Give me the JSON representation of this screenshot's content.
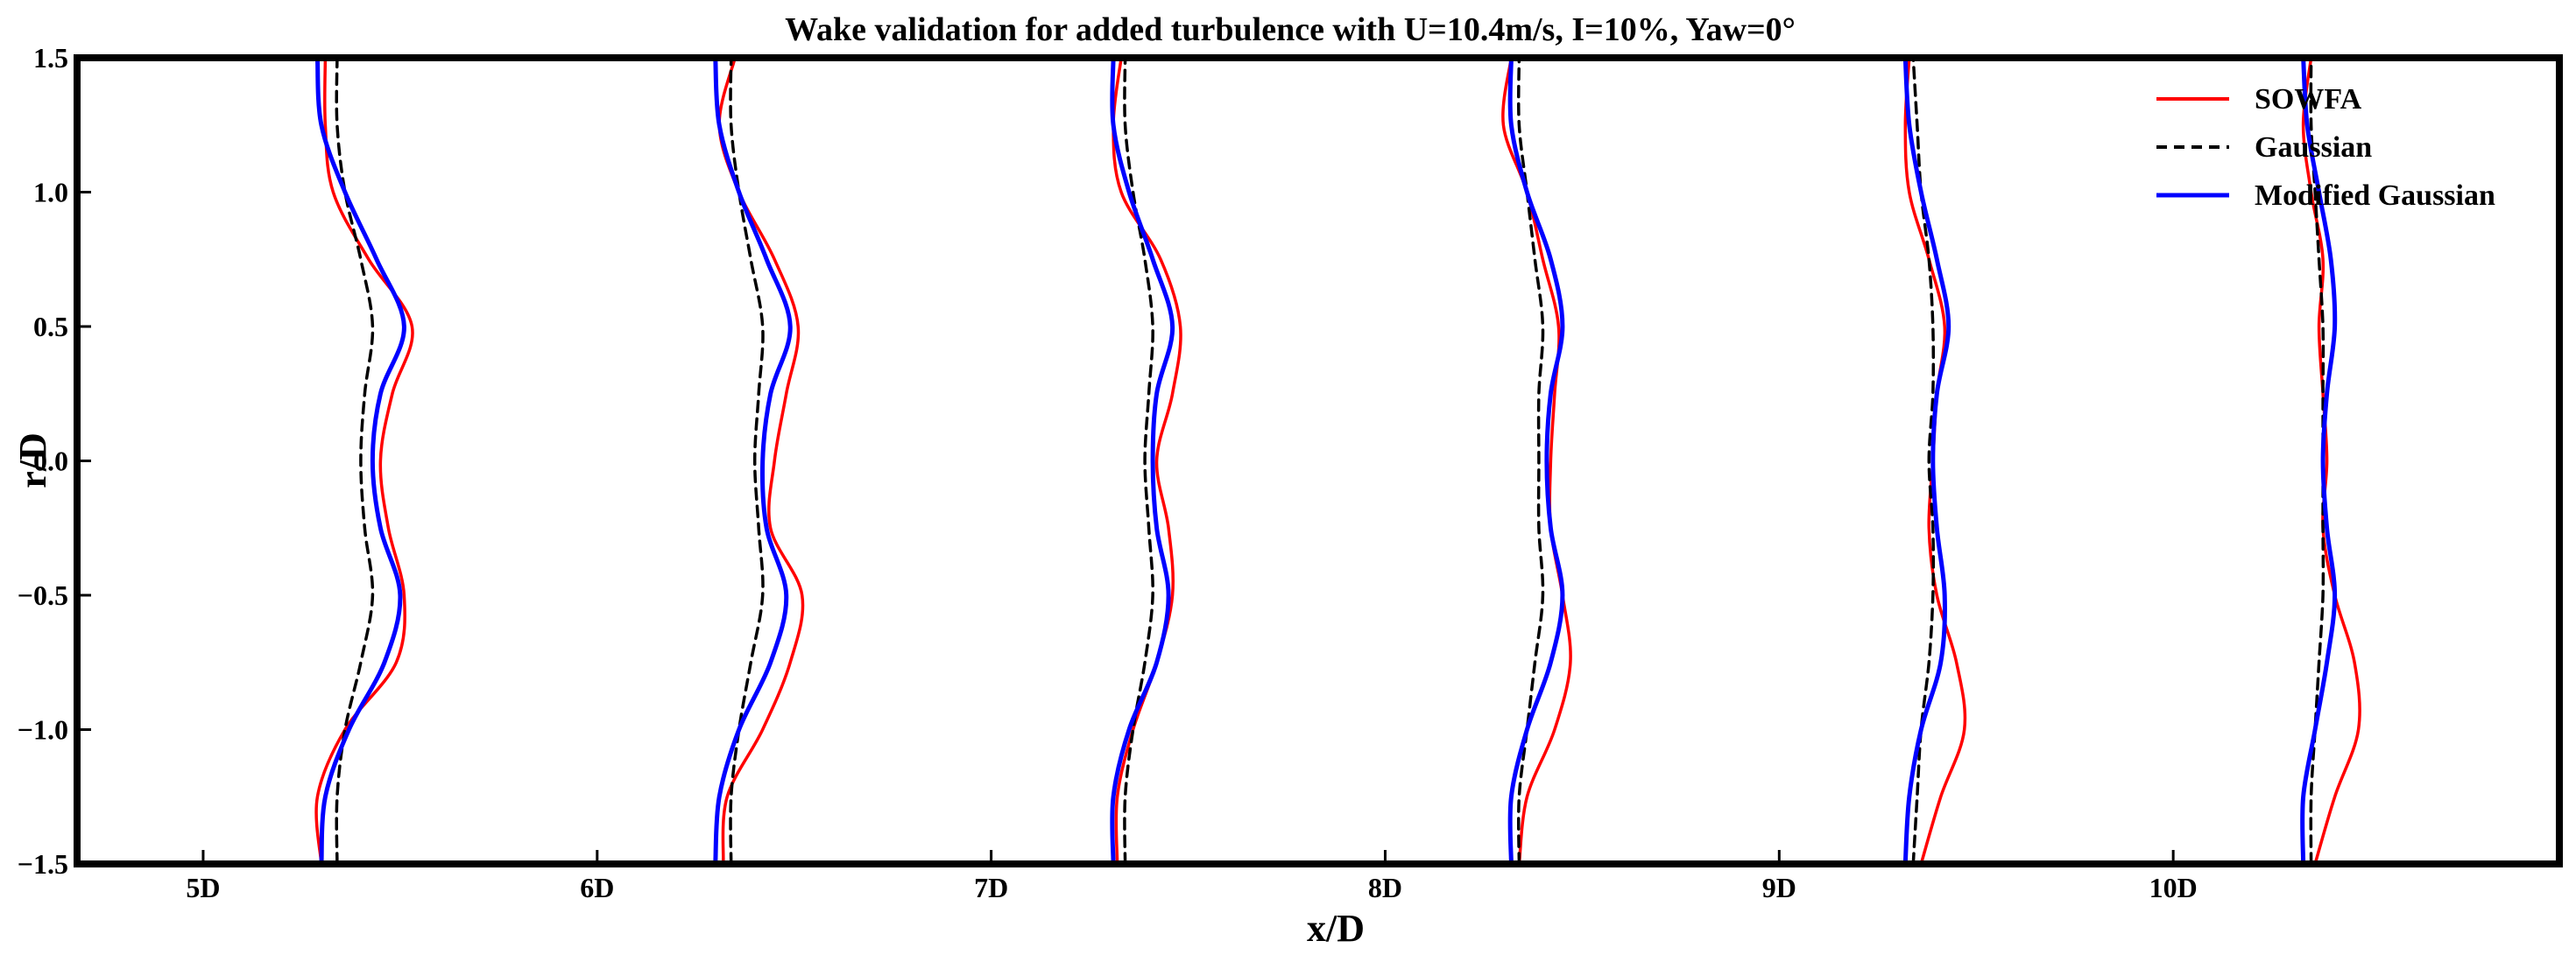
{
  "chart_data": {
    "type": "line",
    "title": "Wake validation for added turbulence with U=10.4m/s, I=10%, Yaw=0°",
    "xlabel": "x/D",
    "ylabel": "r/D",
    "xlim": [
      4.68,
      10.98
    ],
    "ylim": [
      -1.5,
      1.5
    ],
    "x_ticks": [
      5,
      6,
      7,
      8,
      9,
      10
    ],
    "x_tick_labels": [
      "5D",
      "6D",
      "7D",
      "8D",
      "9D",
      "10D"
    ],
    "y_ticks": [
      -1.5,
      -1.0,
      -0.5,
      0.0,
      0.5,
      1.0,
      1.5
    ],
    "y_tick_labels": [
      "−1.5",
      "−1.0",
      "−0.5",
      "0.0",
      "0.5",
      "1.0",
      "1.5"
    ],
    "legend_position": "top-right",
    "grid": false,
    "profile_r": [
      -1.5,
      -1.25,
      -1.0,
      -0.75,
      -0.5,
      -0.25,
      0.0,
      0.25,
      0.5,
      0.75,
      1.0,
      1.25,
      1.5
    ],
    "series": [
      {
        "name": "SOWFA",
        "color": "#ff0000",
        "dash": "solid",
        "profiles": [
          {
            "station": "5D",
            "x": [
              5.3,
              5.29,
              5.36,
              5.49,
              5.51,
              5.47,
              5.45,
              5.48,
              5.53,
              5.42,
              5.33,
              5.31,
              5.31
            ]
          },
          {
            "station": "6D",
            "x": [
              6.32,
              6.33,
              6.42,
              6.49,
              6.52,
              6.44,
              6.45,
              6.48,
              6.51,
              6.45,
              6.36,
              6.31,
              6.35
            ]
          },
          {
            "station": "7D",
            "x": [
              7.32,
              7.32,
              7.36,
              7.42,
              7.46,
              7.45,
              7.42,
              7.46,
              7.48,
              7.43,
              7.33,
              7.31,
              7.33
            ]
          },
          {
            "station": "8D",
            "x": [
              8.34,
              8.36,
              8.43,
              8.47,
              8.45,
              8.42,
              8.42,
              8.43,
              8.44,
              8.4,
              8.36,
              8.3,
              8.32
            ]
          },
          {
            "station": "9D",
            "x": [
              9.36,
              9.41,
              9.47,
              9.45,
              9.4,
              9.38,
              9.39,
              9.4,
              9.42,
              9.38,
              9.33,
              9.32,
              9.33
            ]
          },
          {
            "station": "10D",
            "x": [
              10.36,
              10.41,
              10.47,
              10.46,
              10.41,
              10.38,
              10.39,
              10.38,
              10.37,
              10.38,
              10.35,
              10.33,
              10.35
            ]
          }
        ]
      },
      {
        "name": "Gaussian",
        "color": "#000000",
        "dash": "dashed",
        "profiles": [
          {
            "station": "5D",
            "x": [
              5.34,
              5.34,
              5.36,
              5.4,
              5.43,
              5.41,
              5.4,
              5.41,
              5.43,
              5.4,
              5.36,
              5.34,
              5.34
            ]
          },
          {
            "station": "6D",
            "x": [
              6.34,
              6.34,
              6.36,
              6.39,
              6.42,
              6.41,
              6.4,
              6.41,
              6.42,
              6.39,
              6.36,
              6.34,
              6.34
            ]
          },
          {
            "station": "7D",
            "x": [
              7.34,
              7.34,
              7.36,
              7.39,
              7.41,
              7.4,
              7.39,
              7.4,
              7.41,
              7.39,
              7.36,
              7.34,
              7.34
            ]
          },
          {
            "station": "8D",
            "x": [
              8.34,
              8.34,
              8.36,
              8.38,
              8.4,
              8.39,
              8.39,
              8.39,
              8.4,
              8.38,
              8.36,
              8.34,
              8.34
            ]
          },
          {
            "station": "9D",
            "x": [
              9.34,
              9.35,
              9.36,
              9.38,
              9.39,
              9.39,
              9.38,
              9.39,
              9.39,
              9.38,
              9.36,
              9.35,
              9.34
            ]
          },
          {
            "station": "10D",
            "x": [
              10.35,
              10.35,
              10.36,
              10.37,
              10.38,
              10.38,
              10.38,
              10.38,
              10.38,
              10.37,
              10.36,
              10.35,
              10.35
            ]
          }
        ]
      },
      {
        "name": "Modified Gaussian",
        "color": "#0000ff",
        "dash": "solid",
        "profiles": [
          {
            "station": "5D",
            "x": [
              5.3,
              5.31,
              5.37,
              5.46,
              5.5,
              5.45,
              5.43,
              5.45,
              5.51,
              5.44,
              5.36,
              5.3,
              5.29
            ]
          },
          {
            "station": "6D",
            "x": [
              6.3,
              6.31,
              6.36,
              6.44,
              6.48,
              6.43,
              6.42,
              6.44,
              6.49,
              6.43,
              6.36,
              6.31,
              6.3
            ]
          },
          {
            "station": "7D",
            "x": [
              7.31,
              7.31,
              7.35,
              7.42,
              7.45,
              7.42,
              7.41,
              7.42,
              7.46,
              7.41,
              7.35,
              7.31,
              7.31
            ]
          },
          {
            "station": "8D",
            "x": [
              8.32,
              8.32,
              8.36,
              8.42,
              8.45,
              8.42,
              8.41,
              8.42,
              8.45,
              8.42,
              8.36,
              8.32,
              8.32
            ]
          },
          {
            "station": "9D",
            "x": [
              9.32,
              9.33,
              9.36,
              9.41,
              9.42,
              9.4,
              9.39,
              9.4,
              9.43,
              9.4,
              9.36,
              9.33,
              9.32
            ]
          },
          {
            "station": "10D",
            "x": [
              10.33,
              10.33,
              10.36,
              10.39,
              10.41,
              10.39,
              10.38,
              10.39,
              10.41,
              10.4,
              10.37,
              10.34,
              10.33
            ]
          }
        ]
      }
    ]
  }
}
